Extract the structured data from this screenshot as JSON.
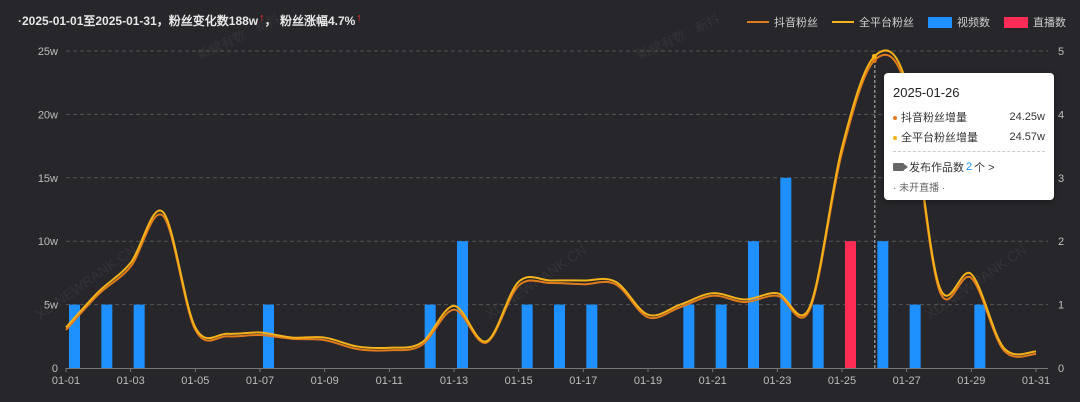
{
  "summary": {
    "range_prefix": "·2025-01-01至2025-01-31，粉丝变化数",
    "change_value": "188w",
    "sep": "，  粉丝涨幅",
    "growth_value": "4.7%",
    "arrow_icon": "up-arrow-icon",
    "arrow_glyph": "↑"
  },
  "legend": [
    {
      "label": "抖音粉丝",
      "kind": "line",
      "color": "#e07b1c"
    },
    {
      "label": "全平台粉丝",
      "kind": "line",
      "color": "#f5b21a"
    },
    {
      "label": "视频数",
      "kind": "bar",
      "color": "#1e90ff"
    },
    {
      "label": "直播数",
      "kind": "bar",
      "color": "#ff2d55"
    }
  ],
  "watermarks": [
    "新榜有数 · 新抖",
    "XD.NEWRANK.CN"
  ],
  "tooltip": {
    "date": "2025-01-26",
    "rows": [
      {
        "label": "抖音粉丝增量",
        "value": "24.25w",
        "color": "#e07b1c"
      },
      {
        "label": "全平台粉丝增量",
        "value": "24.57w",
        "color": "#f5b21a"
      }
    ],
    "works_label": "发布作品数",
    "works_count": "2",
    "works_unit": "个 >",
    "live_text": "· 未开直播 ·"
  },
  "chart_data": {
    "type": "bar",
    "x": [
      "01-01",
      "01-02",
      "01-03",
      "01-04",
      "01-05",
      "01-06",
      "01-07",
      "01-08",
      "01-09",
      "01-10",
      "01-11",
      "01-12",
      "01-13",
      "01-14",
      "01-15",
      "01-16",
      "01-17",
      "01-18",
      "01-19",
      "01-20",
      "01-21",
      "01-22",
      "01-23",
      "01-24",
      "01-25",
      "01-26",
      "01-27",
      "01-28",
      "01-29",
      "01-30",
      "01-31"
    ],
    "x_tick_labels": [
      "01-01",
      "01-03",
      "01-05",
      "01-07",
      "01-09",
      "01-11",
      "01-13",
      "01-15",
      "01-17",
      "01-19",
      "01-21",
      "01-23",
      "01-25",
      "01-27",
      "01-29",
      "01-31"
    ],
    "y_left": {
      "ticks": [
        "0",
        "5w",
        "10w",
        "15w",
        "20w",
        "25w"
      ],
      "range": [
        0,
        25
      ]
    },
    "y_right": {
      "ticks": [
        "0",
        "1",
        "2",
        "3",
        "4",
        "5"
      ],
      "range": [
        0,
        5
      ]
    },
    "series": [
      {
        "name": "抖音粉丝",
        "axis": "left",
        "type": "line",
        "color": "#e07b1c",
        "values": [
          3.0,
          5.8,
          8.0,
          12.0,
          3.0,
          2.5,
          2.6,
          2.3,
          2.2,
          1.5,
          1.4,
          1.8,
          4.6,
          2.0,
          6.5,
          6.7,
          6.6,
          6.6,
          4.0,
          4.8,
          5.7,
          5.2,
          5.7,
          4.6,
          17.0,
          24.25,
          22.0,
          6.2,
          7.1,
          1.4,
          1.1
        ]
      },
      {
        "name": "全平台粉丝",
        "axis": "left",
        "type": "line",
        "color": "#f5b21a",
        "values": [
          3.2,
          6.0,
          8.3,
          12.3,
          3.2,
          2.7,
          2.8,
          2.4,
          2.4,
          1.7,
          1.6,
          2.0,
          4.9,
          2.1,
          6.8,
          6.9,
          6.9,
          6.8,
          4.2,
          5.0,
          5.9,
          5.4,
          5.9,
          4.8,
          17.4,
          24.57,
          22.4,
          6.5,
          7.4,
          1.6,
          1.3
        ]
      },
      {
        "name": "视频数",
        "axis": "right",
        "type": "bar",
        "color": "#1e90ff",
        "values": [
          1,
          1,
          1,
          0,
          0,
          0,
          1,
          0,
          0,
          0,
          0,
          1,
          2,
          0,
          1,
          1,
          1,
          0,
          0,
          1,
          1,
          2,
          3,
          1,
          0,
          2,
          1,
          0,
          1,
          0,
          0
        ]
      },
      {
        "name": "直播数",
        "axis": "right",
        "type": "bar",
        "color": "#ff2d55",
        "values": [
          0,
          0,
          0,
          0,
          0,
          0,
          0,
          0,
          0,
          0,
          0,
          0,
          0,
          0,
          0,
          0,
          0,
          0,
          0,
          0,
          0,
          0,
          0,
          0,
          2,
          0,
          0,
          0,
          0,
          0,
          0
        ]
      }
    ],
    "highlight_index": 25
  }
}
